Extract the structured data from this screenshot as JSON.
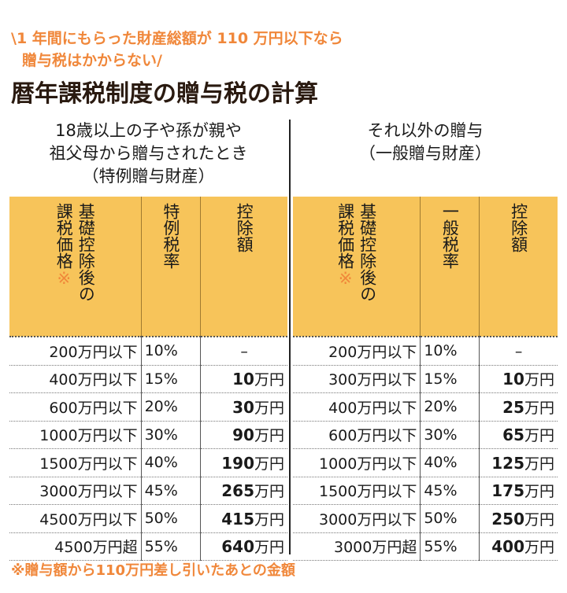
{
  "lead": {
    "line1": "\\1 年間にもらった財産総額が 110 万円以下なら",
    "line2": "贈与税はかからない/"
  },
  "title": "暦年課税制度の贈与税の計算",
  "left": {
    "heading": [
      "18歳以上の子や孫が親や",
      "祖父母から贈与されたとき",
      "（特例贈与財産）"
    ],
    "columns": {
      "amount": "基礎控除後の",
      "amount2": "課税価格",
      "mark": "※",
      "rate": "特例税率",
      "deduction": "控除額"
    },
    "rows": [
      {
        "amount": "200万円以下",
        "rate": "10%",
        "num": "",
        "unit": "–"
      },
      {
        "amount": "400万円以下",
        "rate": "15%",
        "num": "10",
        "unit": "万円"
      },
      {
        "amount": "600万円以下",
        "rate": "20%",
        "num": "30",
        "unit": "万円"
      },
      {
        "amount": "1000万円以下",
        "rate": "30%",
        "num": "90",
        "unit": "万円"
      },
      {
        "amount": "1500万円以下",
        "rate": "40%",
        "num": "190",
        "unit": "万円"
      },
      {
        "amount": "3000万円以下",
        "rate": "45%",
        "num": "265",
        "unit": "万円"
      },
      {
        "amount": "4500万円以下",
        "rate": "50%",
        "num": "415",
        "unit": "万円"
      },
      {
        "amount": "4500万円超",
        "rate": "55%",
        "num": "640",
        "unit": "万円"
      }
    ]
  },
  "right": {
    "heading": [
      "それ以外の贈与",
      "（一般贈与財産）"
    ],
    "columns": {
      "amount": "基礎控除後の",
      "amount2": "課税価格",
      "mark": "※",
      "rate": "一般税率",
      "deduction": "控除額"
    },
    "rows": [
      {
        "amount": "200万円以下",
        "rate": "10%",
        "num": "",
        "unit": "–"
      },
      {
        "amount": "300万円以下",
        "rate": "15%",
        "num": "10",
        "unit": "万円"
      },
      {
        "amount": "400万円以下",
        "rate": "20%",
        "num": "25",
        "unit": "万円"
      },
      {
        "amount": "600万円以下",
        "rate": "30%",
        "num": "65",
        "unit": "万円"
      },
      {
        "amount": "1000万円以下",
        "rate": "40%",
        "num": "125",
        "unit": "万円"
      },
      {
        "amount": "1500万円以下",
        "rate": "45%",
        "num": "175",
        "unit": "万円"
      },
      {
        "amount": "3000万円以下",
        "rate": "50%",
        "num": "250",
        "unit": "万円"
      },
      {
        "amount": "3000万円超",
        "rate": "55%",
        "num": "400",
        "unit": "万円"
      }
    ]
  },
  "footnote": "※贈与額から110万円差し引いたあとの金額",
  "colors": {
    "accent": "#f0873a",
    "header_bg": "#f7c45a"
  }
}
